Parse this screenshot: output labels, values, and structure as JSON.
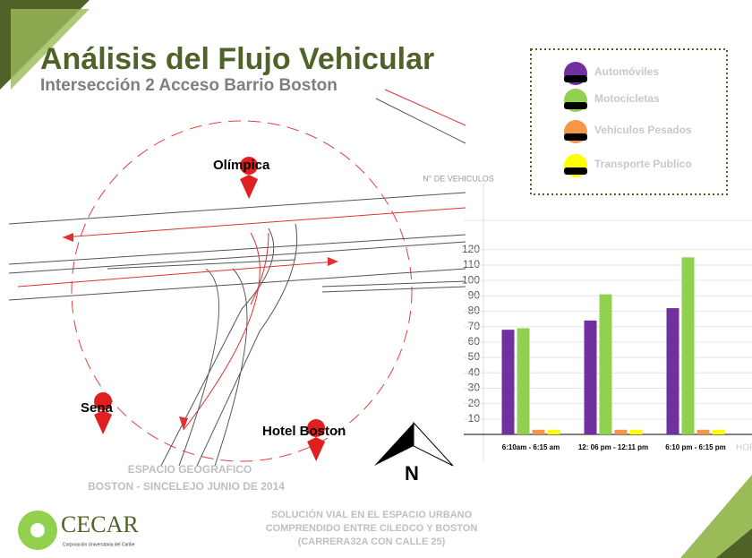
{
  "header": {
    "title": "Análisis del Flujo Vehicular",
    "subtitle": "Intersección 2 Acceso Barrio Boston"
  },
  "map": {
    "labels": [
      "Olímpica",
      "Sena",
      "Hotel Boston"
    ],
    "north": "N",
    "caption": [
      "ESPACIO GEOGRAFICO",
      "BOSTON - SINCELEJO JUNIO DE 2014"
    ]
  },
  "footer": {
    "logo": "CECAR",
    "logo_sub": "Corporación Universitaria del Caribe",
    "lines": [
      "SOLUCIÓN VIAL EN EL ESPACIO URBANO",
      "COMPRENDIDO ENTRE CILEDCO Y BOSTON",
      "(CARRERA32A CON CALLE 25)"
    ]
  },
  "chart_data": {
    "type": "bar",
    "y_label": "N° DE VEHICULOS",
    "x_label": "HORA",
    "categories": [
      "6:10am - 6:15 am",
      "12: 06 pm - 12:11 pm",
      "6:10 pm - 6:15 pm"
    ],
    "series": [
      {
        "name": "Automóviles",
        "color": "#7030a0",
        "values": [
          68,
          74,
          82
        ]
      },
      {
        "name": "Motocicletas",
        "color": "#92d050",
        "values": [
          69,
          91,
          115
        ]
      },
      {
        "name": "Vehículos Pesados",
        "color": "#f79646",
        "values": [
          3,
          3,
          3
        ]
      },
      {
        "name": "Transporte Publico",
        "color": "#ffff00",
        "values": [
          3,
          3,
          3
        ]
      }
    ],
    "ylim": [
      0,
      160
    ],
    "yticks": [
      10,
      20,
      30,
      40,
      50,
      60,
      70,
      80,
      90,
      100,
      110,
      120
    ],
    "grid": true
  }
}
